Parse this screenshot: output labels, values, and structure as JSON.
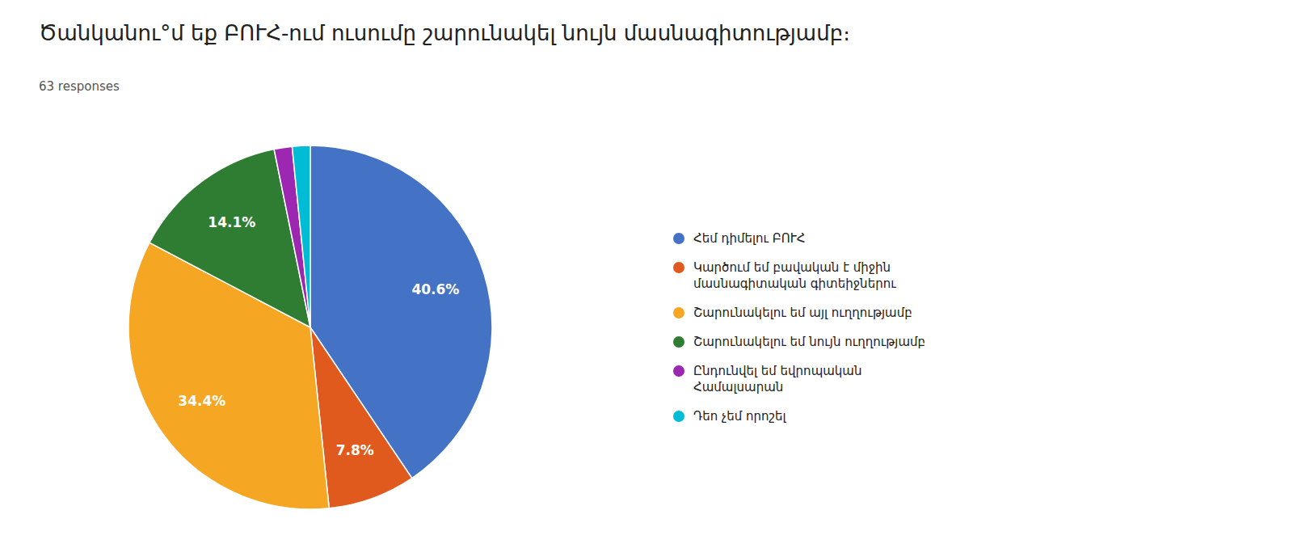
{
  "chart_data": {
    "type": "pie",
    "title": "Ծանկանու°մ եք ԲՈՒՀ-ում ուսումը շարունակել նույն մասնագիտությամբ։",
    "subtitle": "63 responses",
    "categories": [
      "Հեմ դիմելու ԲՈՒՀ",
      "Կարծում եմ բավական է միջին\nմասնագիտական գիտեիջներու",
      "Շարունակելու եմ այլ ուղղությամբ",
      "Շարունակելու եմ նույն ուղղությամբ",
      "Ընդունվել եմ եվրոպական\nՀամալսարան",
      "Դեո չեմ որոշել"
    ],
    "values": [
      40.6,
      7.8,
      34.4,
      14.1,
      1.6,
      1.6
    ],
    "value_labels": [
      "40.6%",
      "7.8%",
      "34.4%",
      "14.1%",
      null,
      null
    ],
    "colors": [
      "#4472C4",
      "#E05A1E",
      "#F5A623",
      "#2E7D32",
      "#9C27B0",
      "#00BCD4"
    ],
    "data_labels": true
  }
}
